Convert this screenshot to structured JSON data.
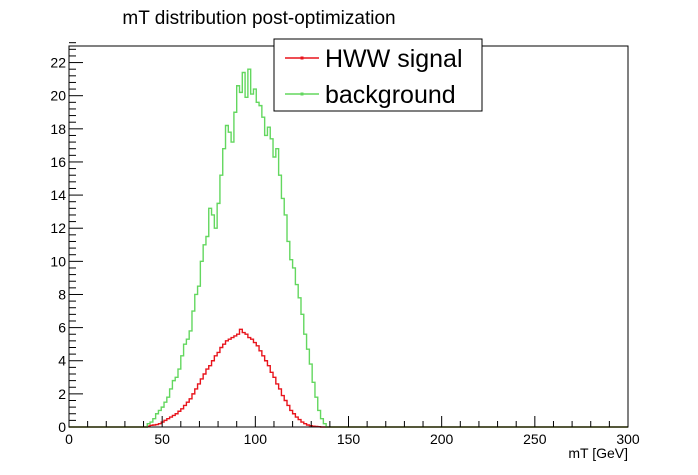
{
  "chart_data": {
    "type": "line",
    "title": "mT distribution post-optimization",
    "xlabel": "mT [GeV]",
    "ylabel": "",
    "xlim": [
      0,
      300
    ],
    "ylim": [
      0,
      23
    ],
    "bin_width": 1.5,
    "x_ticks": [
      0,
      50,
      100,
      150,
      200,
      250,
      300
    ],
    "y_ticks": [
      0,
      2,
      4,
      6,
      8,
      10,
      12,
      14,
      16,
      18,
      20,
      22
    ],
    "grid": false,
    "legend_position": "top-center",
    "series": [
      {
        "name": "HWW signal",
        "color": "#e8141c",
        "x_start": 42,
        "values": [
          0.05,
          0.1,
          0.12,
          0.15,
          0.2,
          0.3,
          0.4,
          0.5,
          0.6,
          0.7,
          0.8,
          0.95,
          1.1,
          1.3,
          1.5,
          1.7,
          2.0,
          2.3,
          2.6,
          2.9,
          3.2,
          3.5,
          3.7,
          4.0,
          4.3,
          4.5,
          4.8,
          5.0,
          5.2,
          5.3,
          5.4,
          5.5,
          5.6,
          5.9,
          5.7,
          5.6,
          5.4,
          5.3,
          5.1,
          4.9,
          4.6,
          4.3,
          4.0,
          3.7,
          3.3,
          3.0,
          2.6,
          2.3,
          1.9,
          1.6,
          1.3,
          1.0,
          0.8,
          0.6,
          0.45,
          0.3,
          0.2,
          0.12,
          0.08,
          0.05,
          0.03,
          0.02,
          0.0,
          0.0
        ]
      },
      {
        "name": "background",
        "color": "#63d75f",
        "x_start": 42,
        "values": [
          0.2,
          0.3,
          0.5,
          0.8,
          1.0,
          1.2,
          1.5,
          1.8,
          2.3,
          2.8,
          3.0,
          3.5,
          4.3,
          5.0,
          5.3,
          5.8,
          7.0,
          8.0,
          8.5,
          10.0,
          11.0,
          11.5,
          13.2,
          12.8,
          12.0,
          13.5,
          15.2,
          16.8,
          18.2,
          17.8,
          17.2,
          19.0,
          20.6,
          20.2,
          21.4,
          19.9,
          21.6,
          20.1,
          20.4,
          19.6,
          19.4,
          18.7,
          17.6,
          18.1,
          17.4,
          16.3,
          16.8,
          15.2,
          13.8,
          12.8,
          11.2,
          10.1,
          9.6,
          8.6,
          7.8,
          6.8,
          5.6,
          4.7,
          3.8,
          2.7,
          1.8,
          1.0,
          0.5,
          0.2
        ]
      }
    ]
  }
}
